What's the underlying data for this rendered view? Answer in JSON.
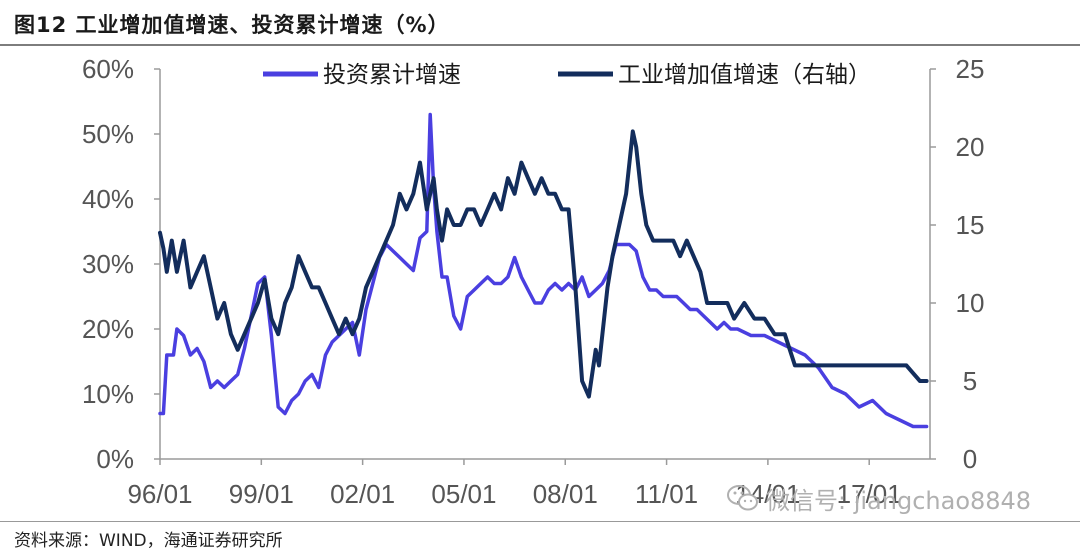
{
  "title": "图12 工业增加值增速、投资累计增速（%）",
  "source": "资料来源：WIND，海通证券研究所",
  "watermark": {
    "text": "微信号: jiangchao8848",
    "icon": "wechat-icon"
  },
  "chart_data": {
    "type": "line",
    "title": "图12 工业增加值增速、投资累计增速（%）",
    "x_ticks": [
      "96/01",
      "99/01",
      "02/01",
      "05/01",
      "08/01",
      "11/01",
      "14/01",
      "17/01"
    ],
    "x_range": [
      1996.0,
      2018.8
    ],
    "y_left": {
      "ticks": [
        "0%",
        "10%",
        "20%",
        "30%",
        "40%",
        "50%",
        "60%"
      ],
      "range": [
        0,
        60
      ]
    },
    "y_right": {
      "ticks": [
        "0",
        "5",
        "10",
        "15",
        "20",
        "25"
      ],
      "range": [
        0,
        25
      ]
    },
    "legend_position": "top-center",
    "grid": false,
    "series": [
      {
        "name": "投资累计增速",
        "axis": "left",
        "color": "#4a3fe0",
        "x": [
          1996.0,
          1996.1,
          1996.2,
          1996.4,
          1996.5,
          1996.7,
          1996.9,
          1997.1,
          1997.3,
          1997.5,
          1997.7,
          1997.9,
          1998.1,
          1998.3,
          1998.5,
          1998.7,
          1998.9,
          1999.1,
          1999.3,
          1999.5,
          1999.7,
          1999.9,
          2000.1,
          2000.3,
          2000.5,
          2000.7,
          2000.9,
          2001.1,
          2001.3,
          2001.5,
          2001.7,
          2001.9,
          2002.1,
          2002.3,
          2002.5,
          2002.7,
          2002.9,
          2003.1,
          2003.3,
          2003.5,
          2003.7,
          2003.9,
          2004.0,
          2004.1,
          2004.2,
          2004.35,
          2004.5,
          2004.7,
          2004.9,
          2005.1,
          2005.3,
          2005.5,
          2005.7,
          2005.9,
          2006.1,
          2006.3,
          2006.5,
          2006.7,
          2006.9,
          2007.1,
          2007.3,
          2007.5,
          2007.7,
          2007.9,
          2008.1,
          2008.3,
          2008.5,
          2008.7,
          2008.9,
          2009.1,
          2009.3,
          2009.5,
          2009.7,
          2009.9,
          2010.1,
          2010.3,
          2010.5,
          2010.7,
          2010.9,
          2011.1,
          2011.3,
          2011.5,
          2011.7,
          2011.9,
          2012.1,
          2012.3,
          2012.5,
          2012.7,
          2012.9,
          2013.1,
          2013.5,
          2013.9,
          2014.3,
          2014.7,
          2015.1,
          2015.5,
          2015.9,
          2016.3,
          2016.7,
          2017.1,
          2017.5,
          2017.9,
          2018.3,
          2018.7
        ],
        "values": [
          7,
          7,
          16,
          16,
          20,
          19,
          16,
          17,
          15,
          11,
          12,
          11,
          12,
          13,
          17,
          22,
          27,
          28,
          19,
          8,
          7,
          9,
          10,
          12,
          13,
          11,
          16,
          18,
          19,
          20,
          21,
          16,
          23,
          27,
          31,
          33,
          32,
          31,
          30,
          29,
          34,
          35,
          53,
          42,
          35,
          28,
          28,
          22,
          20,
          25,
          26,
          27,
          28,
          27,
          27,
          28,
          31,
          28,
          26,
          24,
          24,
          26,
          27,
          26,
          27,
          26,
          28,
          25,
          26,
          27,
          29,
          33,
          33,
          33,
          32,
          28,
          26,
          26,
          25,
          25,
          25,
          24,
          23,
          23,
          22,
          21,
          20,
          21,
          20,
          20,
          19,
          19,
          18,
          17,
          16,
          14,
          11,
          10,
          8,
          9,
          7,
          6,
          5,
          5
        ],
        "x_label": "",
        "y_label": ""
      },
      {
        "name": "工业增加值增速（右轴）",
        "axis": "right",
        "color": "#132d5c",
        "x": [
          1996.0,
          1996.1,
          1996.2,
          1996.35,
          1996.5,
          1996.7,
          1996.9,
          1997.1,
          1997.3,
          1997.5,
          1997.7,
          1997.9,
          1998.1,
          1998.3,
          1998.5,
          1998.7,
          1998.9,
          1999.1,
          1999.3,
          1999.5,
          1999.7,
          1999.9,
          2000.1,
          2000.3,
          2000.5,
          2000.7,
          2000.9,
          2001.1,
          2001.3,
          2001.5,
          2001.7,
          2001.9,
          2002.1,
          2002.3,
          2002.5,
          2002.7,
          2002.9,
          2003.1,
          2003.3,
          2003.5,
          2003.7,
          2003.9,
          2004.1,
          2004.2,
          2004.35,
          2004.5,
          2004.7,
          2004.9,
          2005.1,
          2005.3,
          2005.5,
          2005.7,
          2005.9,
          2006.1,
          2006.3,
          2006.5,
          2006.7,
          2006.9,
          2007.1,
          2007.3,
          2007.5,
          2007.7,
          2007.9,
          2008.1,
          2008.3,
          2008.5,
          2008.7,
          2008.9,
          2009.0,
          2009.1,
          2009.25,
          2009.4,
          2009.6,
          2009.8,
          2010.0,
          2010.1,
          2010.25,
          2010.4,
          2010.6,
          2010.8,
          2011.0,
          2011.2,
          2011.4,
          2011.6,
          2011.8,
          2012.0,
          2012.2,
          2012.4,
          2012.6,
          2012.8,
          2013.0,
          2013.3,
          2013.6,
          2013.9,
          2014.2,
          2014.5,
          2014.8,
          2015.1,
          2015.5,
          2015.9,
          2016.3,
          2016.7,
          2017.1,
          2017.5,
          2017.9,
          2018.1,
          2018.3,
          2018.5,
          2018.7
        ],
        "values": [
          14.5,
          13.5,
          12,
          14,
          12,
          14,
          11,
          12,
          13,
          11,
          9,
          10,
          8,
          7,
          8,
          9,
          10,
          11.5,
          9,
          8,
          10,
          11,
          13,
          12,
          11,
          11,
          10,
          9,
          8,
          9,
          8,
          9,
          11,
          12,
          13,
          14,
          15,
          17,
          16,
          17,
          19,
          16,
          18,
          16,
          14,
          16,
          15,
          15,
          16,
          16,
          15,
          16,
          17,
          16,
          18,
          17,
          19,
          18,
          17,
          18,
          17,
          17,
          16,
          16,
          11,
          5,
          4,
          7,
          6,
          8,
          11,
          13,
          15,
          17,
          21,
          20,
          17,
          15,
          14,
          14,
          14,
          14,
          13,
          14,
          13,
          12,
          10,
          10,
          10,
          10,
          9,
          10,
          9,
          9,
          8,
          8,
          6,
          6,
          6,
          6,
          6,
          6,
          6,
          6,
          6,
          6,
          5.5,
          5,
          5
        ]
      }
    ]
  }
}
